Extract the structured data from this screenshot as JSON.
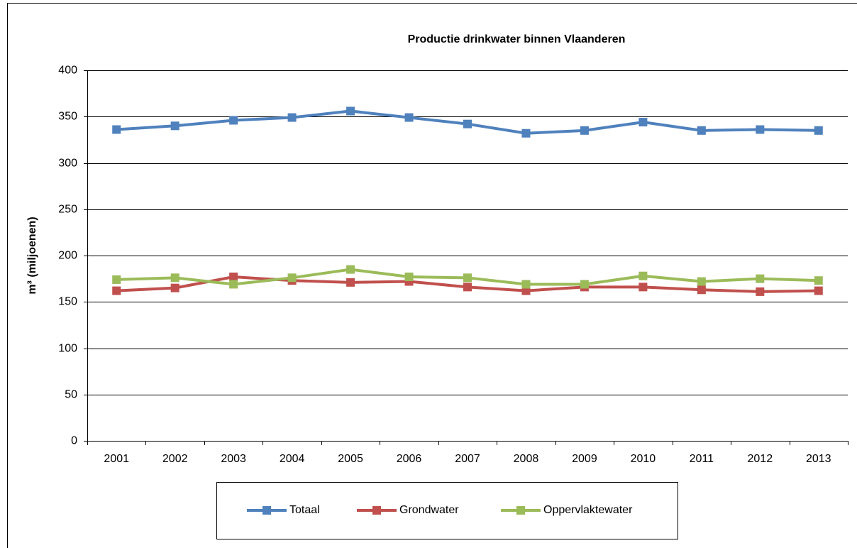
{
  "chart_data": {
    "type": "line",
    "title": "Productie drinkwater binnen Vlaanderen",
    "y_label": "m³ (miljoenen)",
    "categories": [
      "2001",
      "2002",
      "2003",
      "2004",
      "2005",
      "2006",
      "2007",
      "2008",
      "2009",
      "2010",
      "2011",
      "2012",
      "2013"
    ],
    "series": [
      {
        "name": "Totaal",
        "color": "#4f81bd",
        "values": [
          336,
          340,
          346,
          349,
          356,
          349,
          342,
          332,
          335,
          344,
          335,
          336,
          335
        ]
      },
      {
        "name": "Grondwater",
        "color": "#c0504d",
        "values": [
          162,
          165,
          177,
          173,
          171,
          172,
          166,
          162,
          166,
          166,
          163,
          161,
          162
        ]
      },
      {
        "name": "Oppervlaktewater",
        "color": "#9bbb59",
        "values": [
          174,
          176,
          169,
          176,
          185,
          177,
          176,
          169,
          169,
          178,
          172,
          175,
          173
        ]
      }
    ],
    "ylim": [
      0,
      400
    ],
    "yticks": [
      0,
      50,
      100,
      150,
      200,
      250,
      300,
      350,
      400
    ],
    "grid": true,
    "legend": "bottom"
  }
}
